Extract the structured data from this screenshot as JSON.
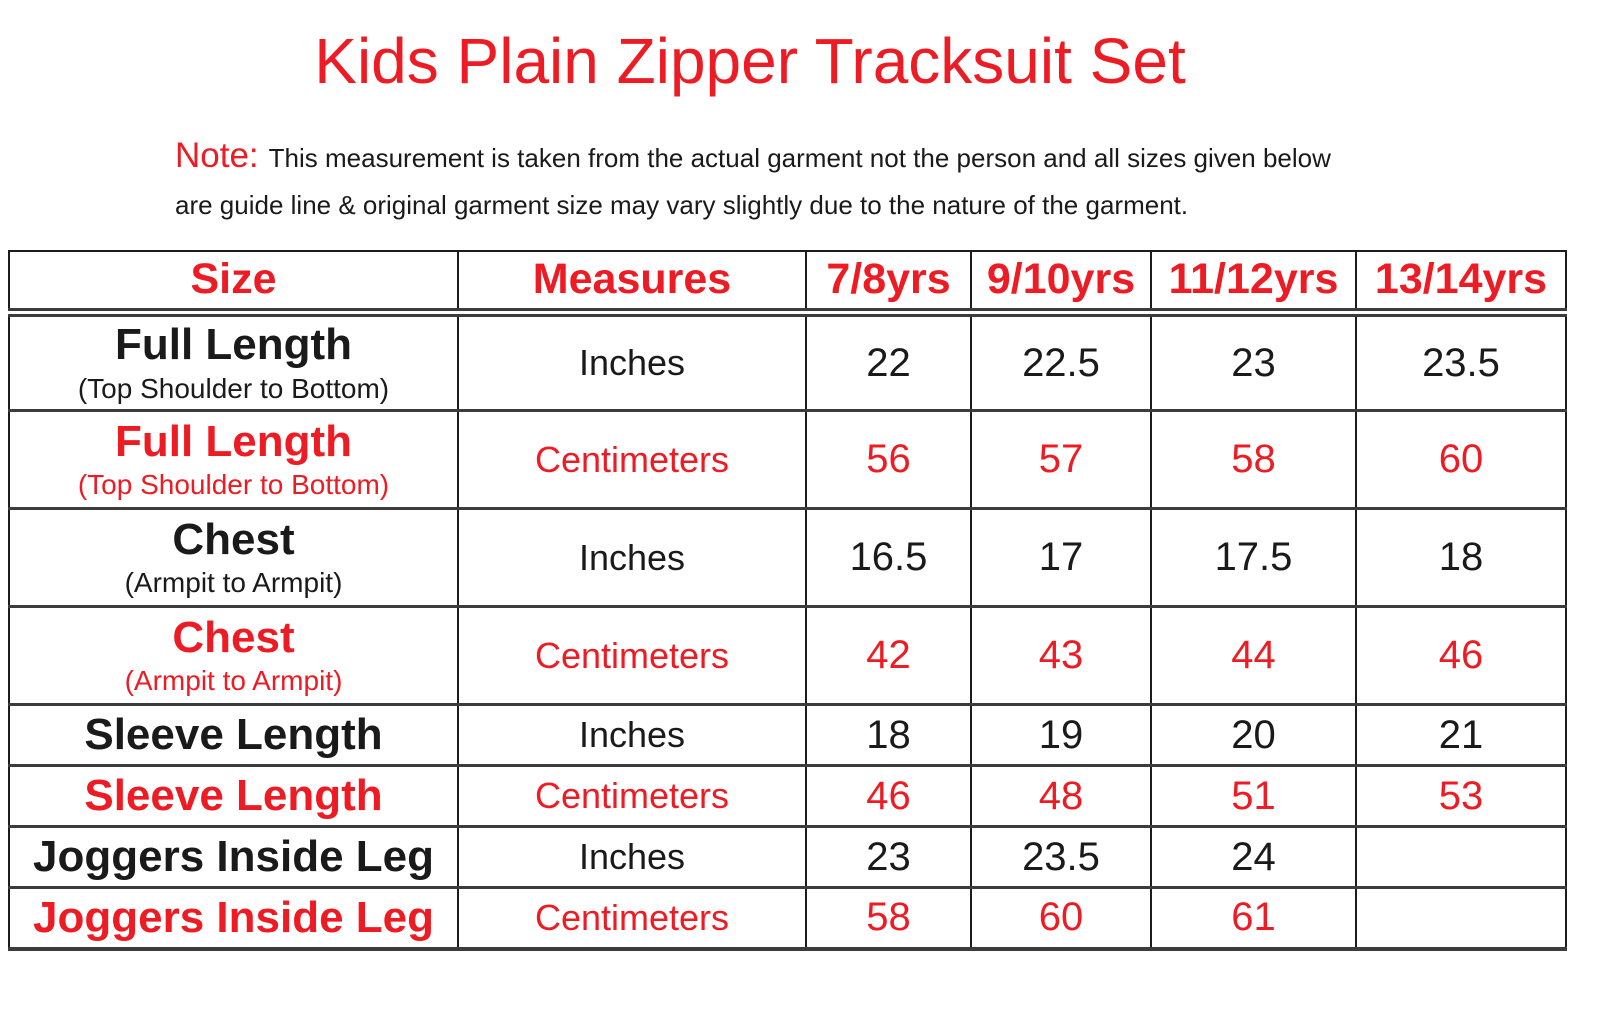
{
  "page": {
    "title": "Kids Plain Zipper Tracksuit Set",
    "note_label": "Note:",
    "note_line1": "This measurement is taken from the actual garment not the person and all sizes given below",
    "note_line2": "are guide line & original garment size may vary slightly due to the nature of the garment."
  },
  "colors": {
    "accent_red": "#ED1C24",
    "text_black": "#1a1a1a",
    "border_dark": "#3c3c3c"
  },
  "table": {
    "headers": [
      "Size",
      "Measures",
      "7/8yrs",
      "9/10yrs",
      "11/12yrs",
      "13/14yrs"
    ],
    "rows": [
      {
        "label": "Full Length",
        "sublabel": "(Top Shoulder to Bottom)",
        "measure": "Inches",
        "color": "black",
        "values": [
          "22",
          "22.5",
          "23",
          "23.5"
        ]
      },
      {
        "label": "Full Length",
        "sublabel": "(Top Shoulder to Bottom)",
        "measure": "Centimeters",
        "color": "red",
        "values": [
          "56",
          "57",
          "58",
          "60"
        ]
      },
      {
        "label": "Chest",
        "sublabel": "(Armpit to Armpit)",
        "measure": "Inches",
        "color": "black",
        "values": [
          "16.5",
          "17",
          "17.5",
          "18"
        ]
      },
      {
        "label": "Chest",
        "sublabel": "(Armpit to Armpit)",
        "measure": "Centimeters",
        "color": "red",
        "values": [
          "42",
          "43",
          "44",
          "46"
        ]
      },
      {
        "label": "Sleeve Length",
        "measure": "Inches",
        "color": "black",
        "values": [
          "18",
          "19",
          "20",
          "21"
        ]
      },
      {
        "label": "Sleeve Length",
        "measure": "Centimeters",
        "color": "red",
        "values": [
          "46",
          "48",
          "51",
          "53"
        ]
      },
      {
        "label": "Joggers Inside Leg",
        "measure": "Inches",
        "color": "black",
        "values": [
          "23",
          "23.5",
          "24",
          ""
        ]
      },
      {
        "label": "Joggers Inside Leg",
        "measure": "Centimeters",
        "color": "red",
        "values": [
          "58",
          "60",
          "61",
          ""
        ]
      }
    ]
  }
}
